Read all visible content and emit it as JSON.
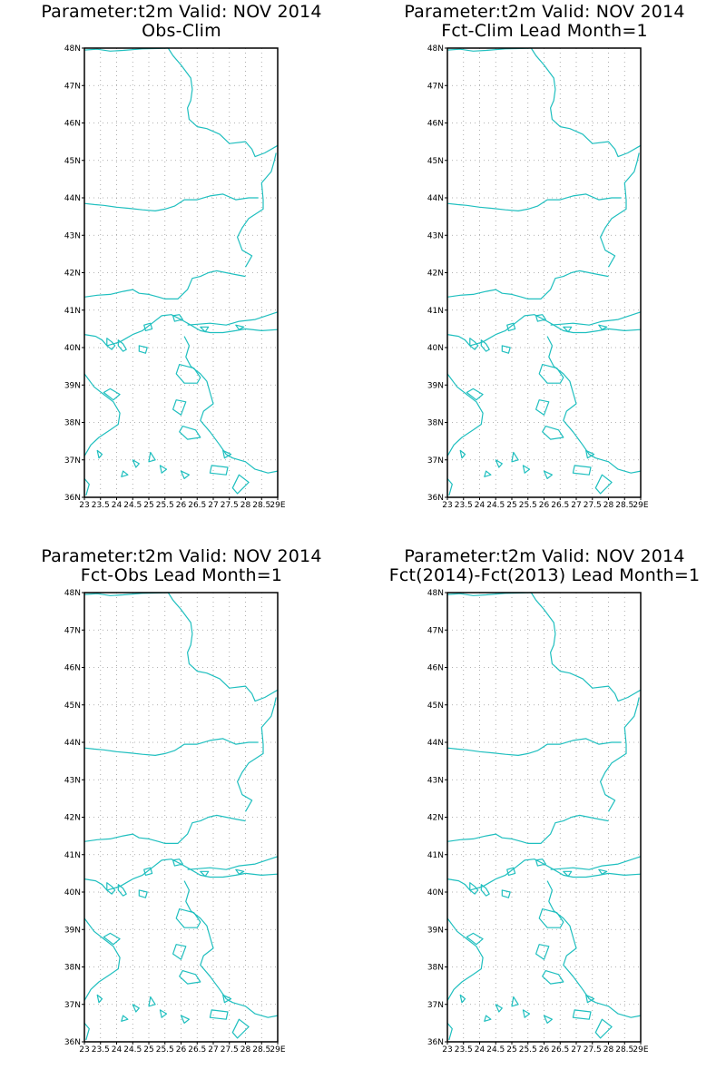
{
  "panels": [
    {
      "title_line1": "Parameter:t2m Valid: NOV 2014",
      "title_line2": "Obs-Clim"
    },
    {
      "title_line1": "Parameter:t2m Valid: NOV 2014",
      "title_line2": "Fct-Clim Lead Month=1"
    },
    {
      "title_line1": "Parameter:t2m Valid: NOV 2014",
      "title_line2": "Fct-Obs Lead Month=1"
    },
    {
      "title_line1": "Parameter:t2m Valid: NOV 2014",
      "title_line2": "Fct(2014)-Fct(2013) Lead Month=1"
    }
  ],
  "map": {
    "lat_labels": [
      "48N",
      "47N",
      "46N",
      "45N",
      "44N",
      "43N",
      "42N",
      "41N",
      "40N",
      "39N",
      "38N",
      "37N",
      "36N"
    ],
    "lon_labels": [
      "23",
      "23.5",
      "24",
      "24.5",
      "25",
      "25.5",
      "26",
      "26.5",
      "27",
      "27.5",
      "28",
      "28.5",
      "29E"
    ],
    "lat_range": [
      36,
      48
    ],
    "lon_range": [
      23,
      29
    ],
    "grid": "dotted",
    "coastline_color": "#1fbfbf",
    "frame_color": "#000000"
  }
}
